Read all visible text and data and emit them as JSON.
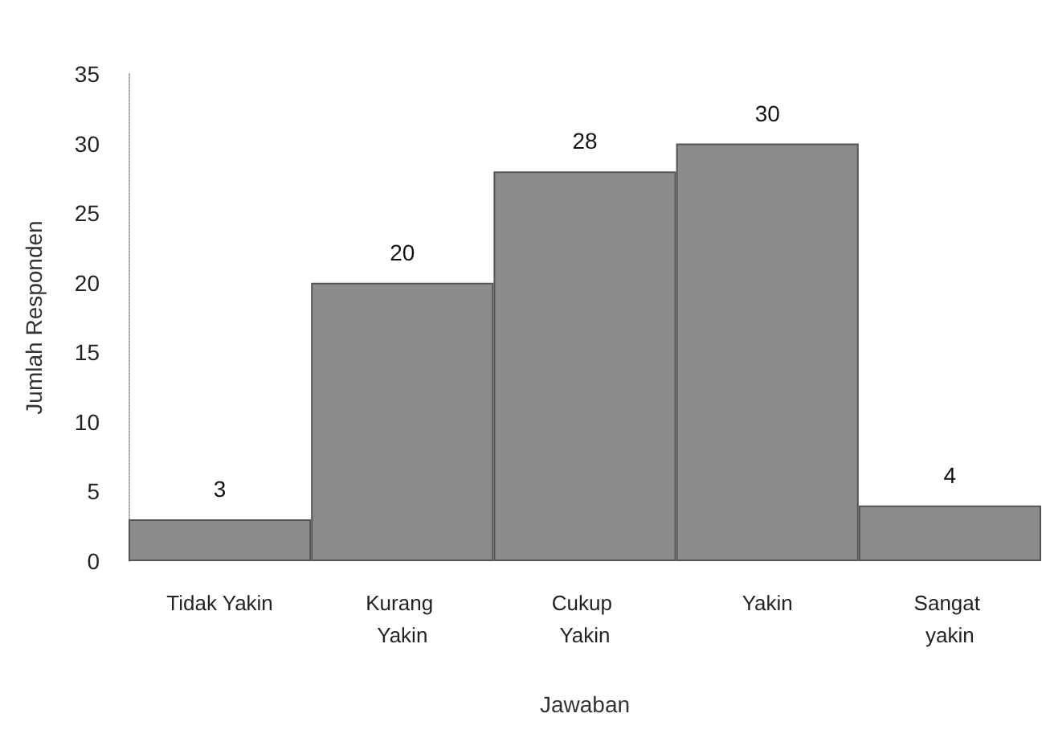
{
  "chart_data": {
    "type": "bar",
    "xlabel": "Jawaban",
    "ylabel": "Jumlah Responden",
    "categories": [
      "Tidak Yakin",
      "Kurang Yakin",
      "Cukup Yakin",
      "Yakin",
      "Sangat yakin"
    ],
    "values": [
      3,
      20,
      28,
      30,
      4
    ],
    "color": "#8c8c8c",
    "ylim": [
      0,
      35
    ],
    "yticks": [
      0,
      5,
      10,
      15,
      20,
      25,
      30,
      35
    ],
    "grid": false,
    "data_labels": true
  }
}
